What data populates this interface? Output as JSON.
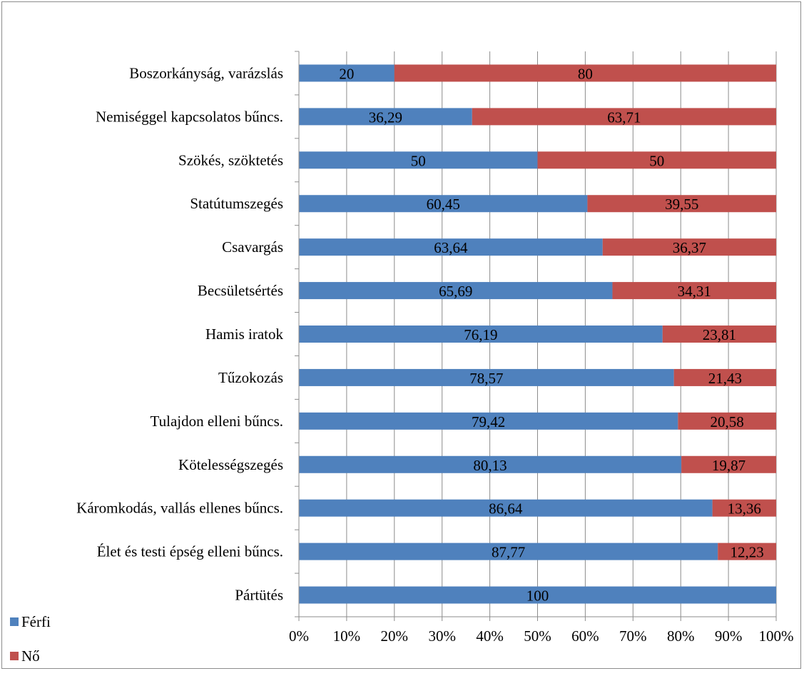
{
  "chart_data": {
    "type": "bar",
    "orientation": "horizontal",
    "stacked": "percent",
    "title": "",
    "xlabel": "",
    "ylabel": "",
    "categories": [
      "Boszorkányság, varázslás",
      "Nemiséggel kapcsolatos bűncs.",
      "Szökés, szöktetés",
      "Statútumszegés",
      "Csavargás",
      "Becsületsértés",
      "Hamis iratok",
      "Tűzokozás",
      "Tulajdon elleni bűncs.",
      "Kötelességszegés",
      "Káromkodás, vallás ellenes bűncs.",
      "Élet és testi épség elleni bűncs.",
      "Pártütés"
    ],
    "series": [
      {
        "name": "Férfi",
        "color": "#4f81bd",
        "values": [
          20,
          36.29,
          50,
          60.45,
          63.64,
          65.69,
          76.19,
          78.57,
          79.42,
          80.13,
          86.64,
          87.77,
          100
        ],
        "labels": [
          "20",
          "36,29",
          "50",
          "60,45",
          "63,64",
          "65,69",
          "76,19",
          "78,57",
          "79,42",
          "80,13",
          "86,64",
          "87,77",
          "100"
        ]
      },
      {
        "name": "Nő",
        "color": "#c0504d",
        "values": [
          80,
          63.71,
          50,
          39.55,
          36.37,
          34.31,
          23.81,
          21.43,
          20.58,
          19.87,
          13.36,
          12.23,
          0
        ],
        "labels": [
          "80",
          "63,71",
          "50",
          "39,55",
          "36,37",
          "34,31",
          "23,81",
          "21,43",
          "20,58",
          "19,87",
          "13,36",
          "12,23",
          ""
        ]
      }
    ],
    "xlim": [
      0,
      100
    ],
    "x_ticks": [
      "0%",
      "10%",
      "20%",
      "30%",
      "40%",
      "50%",
      "60%",
      "70%",
      "80%",
      "90%",
      "100%"
    ],
    "gridlines": true,
    "legend_position": "bottom-left"
  },
  "legend": {
    "items": [
      {
        "label": "Férfi",
        "color": "#4f81bd"
      },
      {
        "label": "Nő",
        "color": "#c0504d"
      }
    ]
  }
}
